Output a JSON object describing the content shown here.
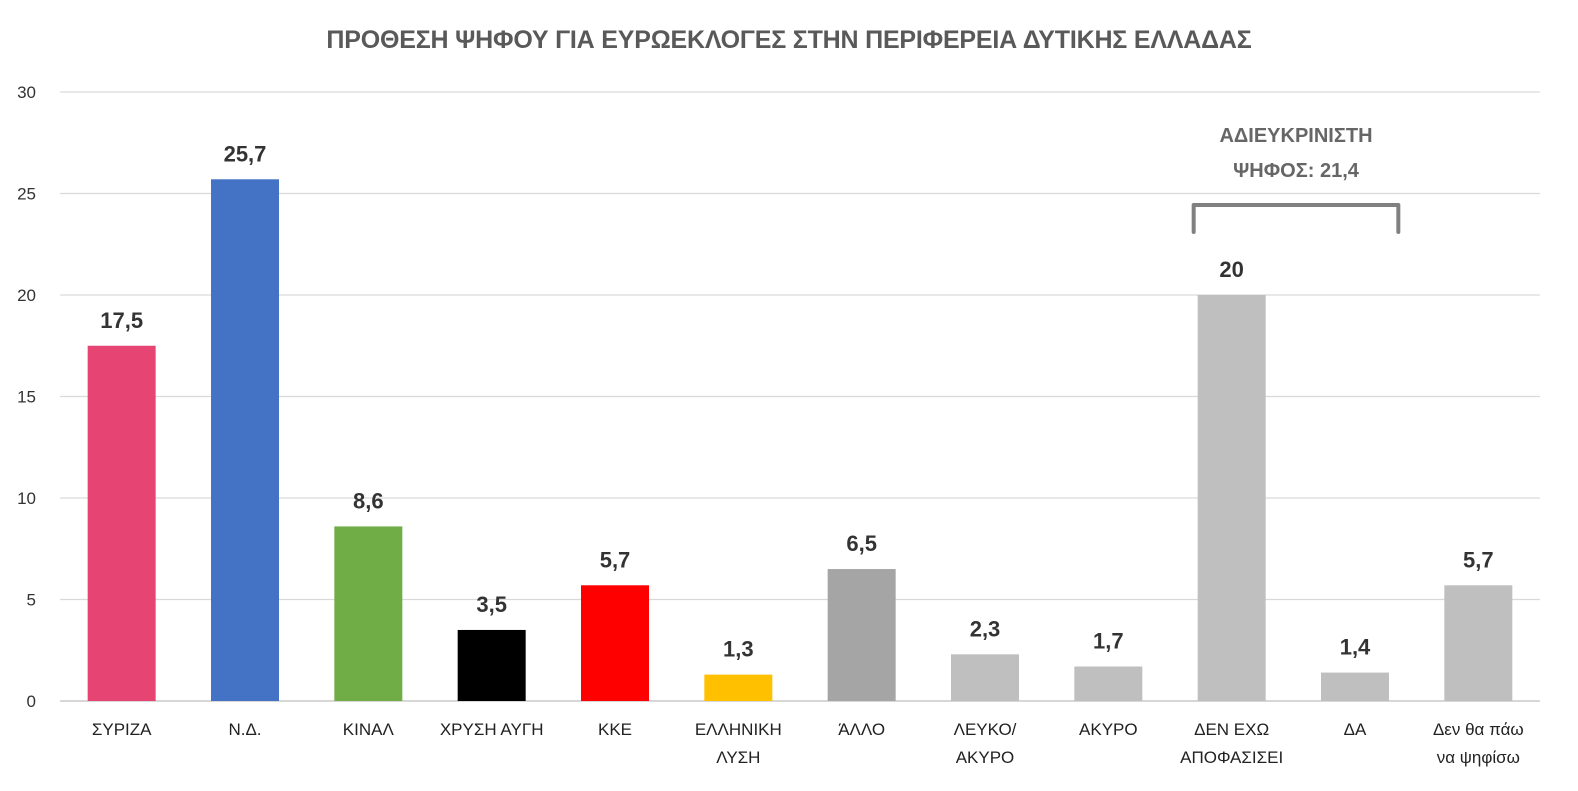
{
  "chart_data": {
    "type": "bar",
    "title": "ΠΡΟΘΕΣΗ ΨΗΦΟΥ ΓΙΑ ΕΥΡΩΕΚΛΟΓΕΣ ΣΤΗΝ ΠΕΡΙΦΕΡΕΙΑ ΔΥΤΙΚΗΣ ΕΛΛΑΔΑΣ",
    "xlabel": "",
    "ylabel": "",
    "ylim": [
      0,
      30
    ],
    "yticks": [
      0,
      5,
      10,
      15,
      20,
      25,
      30
    ],
    "grid": true,
    "categories": [
      [
        "ΣΥΡΙΖΑ"
      ],
      [
        "Ν.Δ."
      ],
      [
        "ΚΙΝΑΛ"
      ],
      [
        "ΧΡΥΣΗ ΑΥΓΗ"
      ],
      [
        "ΚΚΕ"
      ],
      [
        "ΕΛΛΗΝΙΚΗ",
        "ΛΥΣΗ"
      ],
      [
        "ΆΛΛΟ"
      ],
      [
        "ΛΕΥΚΟ/",
        "ΑΚΥΡΟ"
      ],
      [
        "ΑΚΥΡΟ"
      ],
      [
        "ΔΕΝ ΕΧΩ",
        "ΑΠΟΦΑΣΙΣΕΙ"
      ],
      [
        "ΔΑ"
      ],
      [
        "Δεν θα πάω",
        "να ψηφίσω"
      ]
    ],
    "values": [
      17.5,
      25.7,
      8.6,
      3.5,
      5.7,
      1.3,
      6.5,
      2.3,
      1.7,
      20,
      1.4,
      5.7
    ],
    "value_labels": [
      "17,5",
      "25,7",
      "8,6",
      "3,5",
      "5,7",
      "1,3",
      "6,5",
      "2,3",
      "1,7",
      "20",
      "1,4",
      "5,7"
    ],
    "colors": [
      "#E64573",
      "#4472C4",
      "#70AD47",
      "#000000",
      "#FF0000",
      "#FFC000",
      "#A5A5A5",
      "#BFBFBF",
      "#BFBFBF",
      "#BFBFBF",
      "#BFBFBF",
      "#BFBFBF"
    ],
    "annotation": {
      "lines": [
        "ΑΔΙΕΥΚΡΙΝΙΣΤΗ",
        "ΨΗΦΟΣ: 21,4"
      ],
      "bracket_color": "#808080"
    }
  }
}
